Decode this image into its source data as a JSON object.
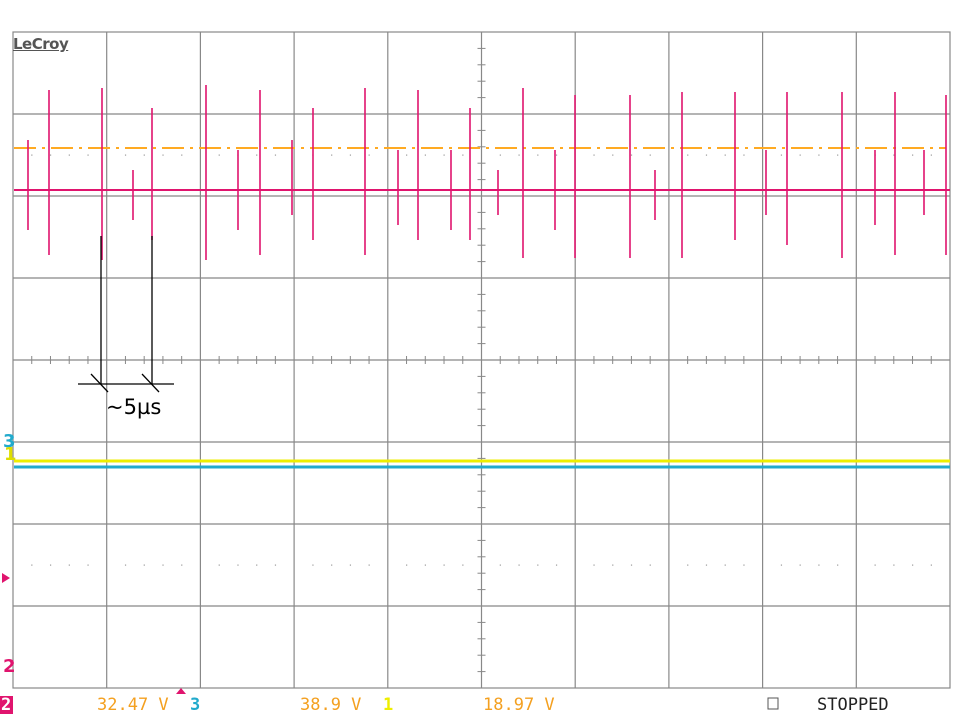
{
  "brand": "LeCroy",
  "annotation": "~5µs",
  "channel_markers": {
    "ch3": "3",
    "ch1": "1",
    "ch2_left": "2",
    "ch2_bottom": "2"
  },
  "status_bar": {
    "ch2_value": "32.47 V",
    "ch3_label": "3",
    "ch3_value": "38.9 V",
    "ch1_label": "1",
    "ch1_value": "18.97 V",
    "run_state": "STOPPED"
  },
  "colors": {
    "grid": "#888888",
    "magenta_trace": "#e0146e",
    "orange_trace": "#ffaa22",
    "yellow_trace": "#eeee00",
    "cyan_trace": "#22aacc",
    "status_orange": "#f4a020"
  },
  "icons": {
    "trigger": "trigger-triangle-icon",
    "status": "status-square-icon"
  }
}
